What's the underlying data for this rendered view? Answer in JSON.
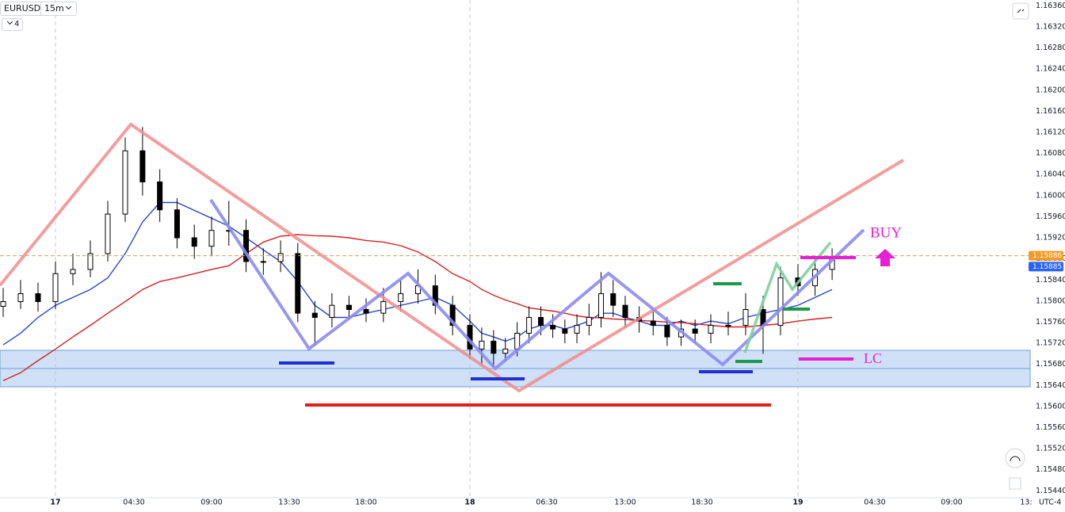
{
  "chart_data": {
    "type": "candlestick",
    "symbol": "EURUSD",
    "timeframe": "15m",
    "indicator_count": "4",
    "timezone": "UTC-4",
    "x": [
      "16 21:00",
      "16 22:00",
      "16 23:00",
      "17 00:00",
      "17 01:00",
      "17 02:00",
      "17 03:00",
      "17 04:00",
      "17 05:00",
      "17 06:00",
      "17 07:00",
      "17 08:00",
      "17 09:00",
      "17 10:00",
      "17 11:00",
      "17 12:00",
      "17 13:00",
      "17 14:00",
      "17 15:00",
      "17 16:00",
      "17 17:00",
      "17 18:00",
      "17 19:00",
      "17 20:00",
      "17 21:00",
      "17 22:00",
      "17 23:00",
      "18 00:00",
      "18 01:00",
      "18 02:00",
      "18 03:00",
      "18 04:00",
      "18 05:00",
      "18 06:00",
      "18 07:00",
      "18 08:00",
      "18 09:00",
      "18 10:00",
      "18 11:00",
      "18 12:00",
      "18 13:00",
      "18 14:00",
      "18 15:00",
      "18 16:00",
      "18 17:00",
      "18 18:00",
      "18 19:00",
      "18 20:00",
      "18 21:00",
      "18 22:00",
      "18 23:00",
      "19 00:00",
      "19 01:00",
      "19 02:00"
    ],
    "open": [
      1.1579,
      1.15799,
      1.15814,
      1.15799,
      1.15852,
      1.1586,
      1.1589,
      1.15965,
      1.16085,
      1.16026,
      1.15973,
      1.1592,
      1.15904,
      1.15934,
      1.15934,
      1.15875,
      1.15875,
      1.1589,
      1.15777,
      1.15769,
      1.15792,
      1.15784,
      1.15777,
      1.15799,
      1.15814,
      1.15829,
      1.15792,
      1.15754,
      1.15709,
      1.15724,
      1.15701,
      1.15709,
      1.15739,
      1.15769,
      1.15754,
      1.15747,
      1.15739,
      1.15754,
      1.15769,
      1.15814,
      1.15792,
      1.15769,
      1.15762,
      1.15754,
      1.15732,
      1.15747,
      1.15739,
      1.15754,
      1.15754,
      1.15784,
      1.15754,
      1.15844,
      1.15829,
      1.1586
    ],
    "high": [
      1.15825,
      1.1584,
      1.15835,
      1.15875,
      1.1589,
      1.15915,
      1.1599,
      1.1611,
      1.1613,
      1.1605,
      1.15995,
      1.15945,
      1.1596,
      1.1599,
      1.15955,
      1.159,
      1.15915,
      1.1591,
      1.158,
      1.15815,
      1.1581,
      1.15805,
      1.15825,
      1.1584,
      1.1586,
      1.1585,
      1.1581,
      1.15775,
      1.1575,
      1.15745,
      1.1573,
      1.1576,
      1.1579,
      1.1579,
      1.15775,
      1.15765,
      1.15775,
      1.15795,
      1.15855,
      1.1584,
      1.1581,
      1.1579,
      1.1578,
      1.1577,
      1.15765,
      1.15765,
      1.15775,
      1.1578,
      1.15815,
      1.1581,
      1.15865,
      1.1587,
      1.1588,
      1.159
    ],
    "low": [
      1.1577,
      1.15785,
      1.1578,
      1.15785,
      1.1583,
      1.15845,
      1.15875,
      1.1595,
      1.16,
      1.1595,
      1.159,
      1.1588,
      1.15885,
      1.15905,
      1.15855,
      1.1585,
      1.15855,
      1.1576,
      1.15715,
      1.1575,
      1.15765,
      1.1576,
      1.1576,
      1.1578,
      1.15795,
      1.15775,
      1.15735,
      1.1569,
      1.1568,
      1.15675,
      1.15685,
      1.15695,
      1.1572,
      1.15735,
      1.1573,
      1.1572,
      1.1572,
      1.15735,
      1.1575,
      1.1577,
      1.1575,
      1.1574,
      1.15735,
      1.15715,
      1.15715,
      1.1572,
      1.1572,
      1.15735,
      1.15735,
      1.157,
      1.15735,
      1.1581,
      1.1581,
      1.1584
    ],
    "close": [
      1.15799,
      1.15814,
      1.15799,
      1.15852,
      1.1586,
      1.1589,
      1.15965,
      1.16085,
      1.16026,
      1.15973,
      1.1592,
      1.15904,
      1.15934,
      1.15934,
      1.15875,
      1.15875,
      1.1589,
      1.15777,
      1.15769,
      1.15792,
      1.15784,
      1.15777,
      1.15799,
      1.15814,
      1.15829,
      1.15792,
      1.15754,
      1.15709,
      1.15724,
      1.15701,
      1.15709,
      1.15739,
      1.15769,
      1.15754,
      1.15747,
      1.15739,
      1.15754,
      1.15769,
      1.15814,
      1.15792,
      1.15769,
      1.15762,
      1.15754,
      1.15732,
      1.15747,
      1.15739,
      1.15754,
      1.15754,
      1.15784,
      1.15754,
      1.15844,
      1.15829,
      1.1586,
      1.15882
    ],
    "up_color": "#ffffff",
    "down_color": "#000000",
    "lines": [
      {
        "color": "#2a45c4",
        "values": [
          1.15717,
          1.15739,
          1.15769,
          1.15792,
          1.15807,
          1.15822,
          1.15844,
          1.1589,
          1.1595,
          1.15987,
          1.15987,
          1.15972,
          1.15957,
          1.15942,
          1.1592,
          1.15897,
          1.15875,
          1.15837,
          1.15792,
          1.15769,
          1.15769,
          1.15777,
          1.15784,
          1.15792,
          1.15799,
          1.15807,
          1.15792,
          1.15762,
          1.15739,
          1.15732,
          1.15724,
          1.15732,
          1.15747,
          1.15754,
          1.15754,
          1.15747,
          1.15754,
          1.15762,
          1.15777,
          1.15777,
          1.15769,
          1.15762,
          1.15754,
          1.15754,
          1.15762,
          1.15754,
          1.15762,
          1.15757,
          1.15769,
          1.15777,
          1.15784,
          1.15792,
          1.15807,
          1.15822
        ]
      },
      {
        "color": "#d42222",
        "values": [
          1.15649,
          1.15664,
          1.15687,
          1.15709,
          1.15732,
          1.15754,
          1.15777,
          1.15799,
          1.15822,
          1.15837,
          1.15844,
          1.15852,
          1.1586,
          1.15867,
          1.1589,
          1.15912,
          1.15923,
          1.15926,
          1.15924,
          1.15923,
          1.1592,
          1.15915,
          1.15912,
          1.15905,
          1.15893,
          1.15875,
          1.15852,
          1.15837,
          1.15822,
          1.15811,
          1.15802,
          1.15795,
          1.15787,
          1.15784,
          1.15781,
          1.15777,
          1.15772,
          1.15769,
          1.15768,
          1.15766,
          1.15765,
          1.15763,
          1.15762,
          1.1576,
          1.15759,
          1.15757,
          1.15754,
          1.15751,
          1.15751,
          1.15754,
          1.15757,
          1.15762,
          1.15766,
          1.15769
        ]
      }
    ],
    "ylim": [
      1.15427,
      1.16371
    ],
    "yticks": [
      {
        "value": 1.1636,
        "label": "1.16360"
      },
      {
        "value": 1.1632,
        "label": "1.16320"
      },
      {
        "value": 1.1628,
        "label": "1.16280"
      },
      {
        "value": 1.1624,
        "label": "1.16240"
      },
      {
        "value": 1.162,
        "label": "1.16200"
      },
      {
        "value": 1.1616,
        "label": "1.16160"
      },
      {
        "value": 1.1612,
        "label": "1.16120"
      },
      {
        "value": 1.1608,
        "label": "1.16080"
      },
      {
        "value": 1.1604,
        "label": "1.16040"
      },
      {
        "value": 1.16,
        "label": "1.16000"
      },
      {
        "value": 1.1596,
        "label": "1.15960"
      },
      {
        "value": 1.1592,
        "label": "1.15920"
      },
      {
        "value": 1.1588,
        "label": "1.15880"
      },
      {
        "value": 1.1584,
        "label": "1.15840"
      },
      {
        "value": 1.158,
        "label": "1.15800"
      },
      {
        "value": 1.1576,
        "label": "1.15760"
      },
      {
        "value": 1.1572,
        "label": "1.15720"
      },
      {
        "value": 1.1568,
        "label": "1.15680"
      },
      {
        "value": 1.1564,
        "label": "1.15640"
      },
      {
        "value": 1.156,
        "label": "1.15600"
      },
      {
        "value": 1.1556,
        "label": "1.15560"
      },
      {
        "value": 1.1552,
        "label": "1.15520"
      },
      {
        "value": 1.1548,
        "label": "1.15480"
      },
      {
        "value": 1.1544,
        "label": "1.15440"
      }
    ],
    "xticks": [
      {
        "value": "17 00:00",
        "label": "17"
      },
      {
        "value": "17 04:30",
        "label": "04:30"
      },
      {
        "value": "17 09:00",
        "label": "09:00"
      },
      {
        "value": "17 13:30",
        "label": "13:30"
      },
      {
        "value": "17 18:00",
        "label": "18:00"
      },
      {
        "value": "18 00:00",
        "label": "18"
      },
      {
        "value": "18 06:30",
        "label": "06:30"
      },
      {
        "value": "18 13:00",
        "label": "13:00"
      },
      {
        "value": "18 18:30",
        "label": "18:30"
      },
      {
        "value": "19 00:00",
        "label": "19"
      },
      {
        "value": "19 04:30",
        "label": "04:30"
      },
      {
        "value": "19 09:00",
        "label": "09:00"
      },
      {
        "value": "19 13:30",
        "label": "13:"
      }
    ],
    "price_tags": [
      {
        "value": 1.15886,
        "label": "1.15886",
        "color": "#f59a23"
      },
      {
        "value": 1.15885,
        "label": "1.15885",
        "color": "#2962ff"
      }
    ],
    "annotations": {
      "buy": "BUY",
      "lc": "LC"
    }
  }
}
